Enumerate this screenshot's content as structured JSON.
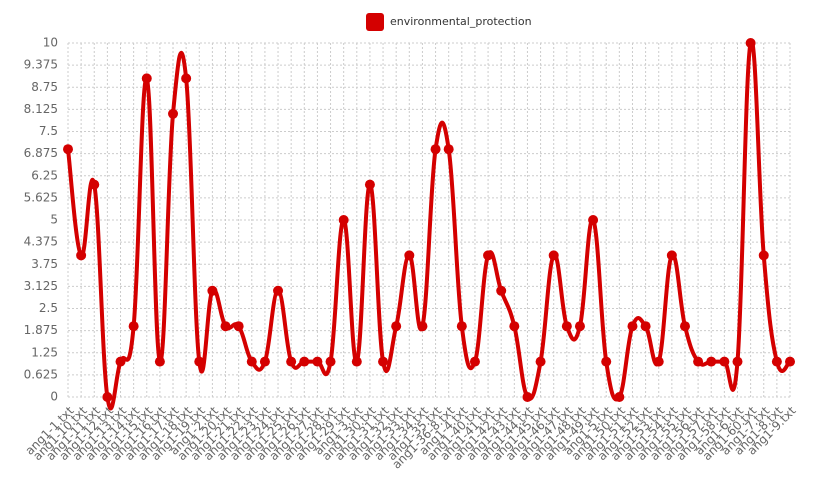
{
  "chart_data": {
    "type": "line",
    "categories": [
      "ang1-1.txt",
      "ang1-10.txt",
      "ang1-11.txt",
      "ang1-12.txt",
      "ang1-13.txt",
      "ang1-14.txt",
      "ang1-15.txt",
      "ang1-16.txt",
      "ang1-17.txt",
      "ang1-18.txt",
      "ang1-19.txt",
      "ang1-2.txt",
      "ang1-20.txt",
      "ang1-21.txt",
      "ang1-22.txt",
      "ang1-23.txt",
      "ang1-24.txt",
      "ang1-25.txt",
      "ang1-26.txt",
      "ang1-27.txt",
      "ang1-28.txt",
      "ang1-29.txt",
      "ang1-3.txt",
      "ang1-30.txt",
      "ang1-31.txt",
      "ang1-32.txt",
      "ang1-33.txt",
      "ang1-34.txt",
      "ang1-35.txt",
      "ang1-36-8.txt",
      "ang1-4.txt",
      "ang1-40.txt",
      "ang1-41.txt",
      "ang1-42.txt",
      "ang1-43.txt",
      "ang1-44.txt",
      "ang1-45.txt",
      "ang1-46.txt",
      "ang1-47.txt",
      "ang1-48.txt",
      "ang1-49.txt",
      "ang1-5.txt",
      "ang1-50.txt",
      "ang1-51.txt",
      "ang1-52.txt",
      "ang1-53.txt",
      "ang1-54.txt",
      "ang1-55.txt",
      "ang1-56.txt",
      "ang1-57.txt",
      "ang1-58.txt",
      "ang1-6.txt",
      "ang1-60.txt",
      "ang1-7.txt",
      "ang1-8.txt",
      "ang1-9.txt"
    ],
    "series": [
      {
        "name": "environmental_protection",
        "color": "#d40000",
        "values": [
          7,
          4,
          6,
          0,
          1,
          2,
          9,
          1,
          8,
          9,
          1,
          3,
          2,
          2,
          1,
          1,
          3,
          1,
          1,
          1,
          1,
          5,
          1,
          6,
          1,
          2,
          4,
          2,
          7,
          7,
          2,
          1,
          4,
          3,
          2,
          0,
          1,
          4,
          2,
          2,
          5,
          1,
          0,
          2,
          2,
          1,
          4,
          2,
          1,
          1,
          1,
          1,
          10,
          4,
          1,
          1
        ]
      }
    ],
    "ylim": [
      0,
      10
    ],
    "yticks": [
      0,
      0.625,
      1.25,
      1.875,
      2.5,
      3.125,
      3.75,
      4.375,
      5,
      5.625,
      6.25,
      6.875,
      7.5,
      8.125,
      8.75,
      9.375,
      10
    ],
    "grid": true
  }
}
